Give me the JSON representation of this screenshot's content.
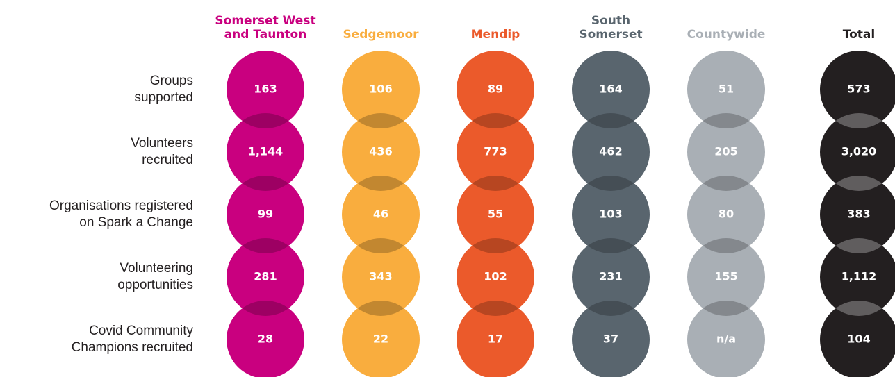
{
  "columns": [
    {
      "name": [
        "Somerset West",
        "and Taunton"
      ],
      "color": "#c9007f",
      "values": [
        "163",
        "1,144",
        "99",
        "281",
        "28"
      ]
    },
    {
      "name": [
        "Sedgemoor"
      ],
      "color": "#f9ad3e",
      "values": [
        "106",
        "436",
        "46",
        "343",
        "22"
      ]
    },
    {
      "name": [
        "Mendip"
      ],
      "color": "#eb5a2b",
      "values": [
        "89",
        "773",
        "55",
        "102",
        "17"
      ]
    },
    {
      "name": [
        "South",
        "Somerset"
      ],
      "color": "#59656e",
      "values": [
        "164",
        "462",
        "103",
        "231",
        "37"
      ]
    },
    {
      "name": [
        "Countywide"
      ],
      "color": "#a9afb5",
      "values": [
        "51",
        "205",
        "80",
        "155",
        "n/a"
      ]
    },
    {
      "name": [
        "Total"
      ],
      "color": "#231f20",
      "values": [
        "573",
        "3,020",
        "383",
        "1,112",
        "104"
      ]
    }
  ],
  "rows": [
    [
      "Groups",
      "supported"
    ],
    [
      "Volunteers",
      "recruited"
    ],
    [
      "Organisations registered",
      "on Spark a Change"
    ],
    [
      "Volunteering",
      "opportunities"
    ],
    [
      "Covid Community",
      "Champions recruited"
    ]
  ]
}
